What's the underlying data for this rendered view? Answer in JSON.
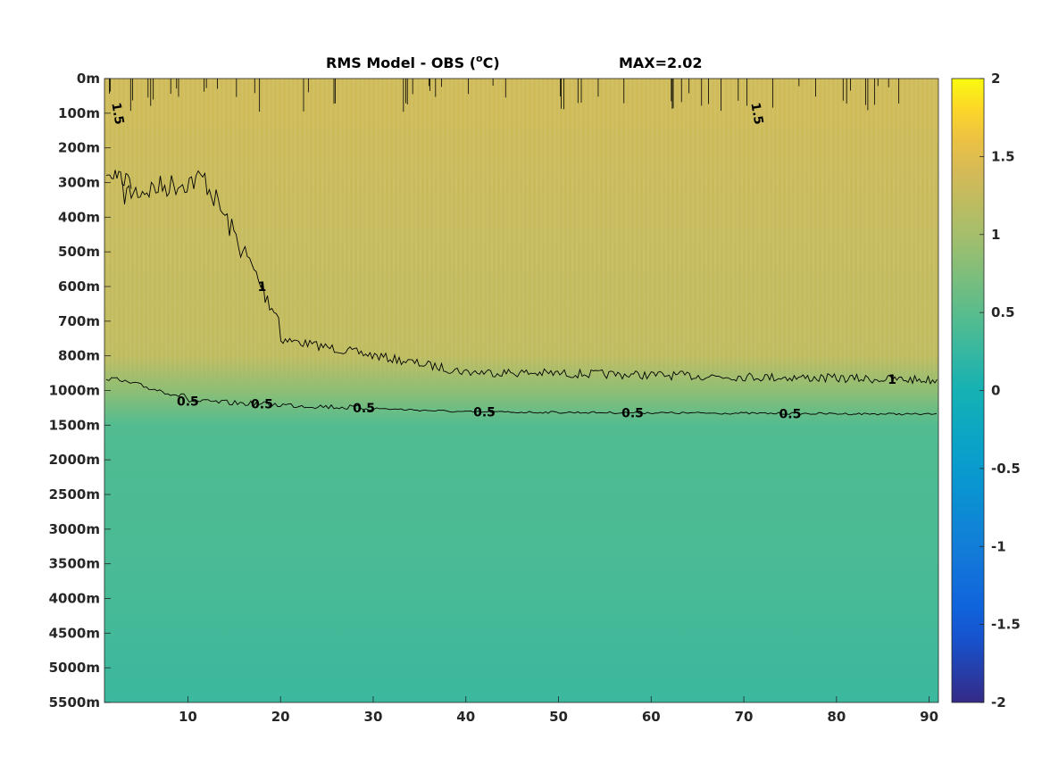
{
  "chart_data": {
    "type": "heatmap",
    "title": "RMS Model - OBS (°C)",
    "title_prefix": "RMS Model - OBS (",
    "title_sup": "o",
    "title_suffix": "C)",
    "max_label": "MAX=2.02",
    "xlim": [
      1,
      91
    ],
    "x_ticks": [
      10,
      20,
      30,
      40,
      50,
      60,
      70,
      80,
      90
    ],
    "y_tick_labels": [
      "0m",
      "100m",
      "200m",
      "300m",
      "400m",
      "500m",
      "600m",
      "700m",
      "800m",
      "1000m",
      "1500m",
      "2000m",
      "2500m",
      "3000m",
      "3500m",
      "4000m",
      "4500m",
      "5000m",
      "5500m"
    ],
    "colorbar": {
      "colormap": "parula",
      "clim": [
        -2,
        2
      ],
      "tick_values": [
        2,
        1.5,
        1,
        0.5,
        0,
        -0.5,
        -1,
        -1.5,
        -2
      ],
      "tick_labels": [
        "2",
        "1.5",
        "1",
        "0.5",
        "0",
        "-0.5",
        "-1",
        "-1.5",
        "-2"
      ]
    },
    "field_profile": {
      "depth_levels": [
        "0m",
        "100m",
        "200m",
        "300m",
        "400m",
        "500m",
        "600m",
        "700m",
        "800m",
        "1000m",
        "1500m",
        "2000m",
        "3000m",
        "4000m",
        "5000m",
        "5500m"
      ],
      "rms_values": [
        1.35,
        1.35,
        1.32,
        1.3,
        1.28,
        1.27,
        1.26,
        1.25,
        1.22,
        0.85,
        0.45,
        0.42,
        0.4,
        0.37,
        0.3,
        0.28
      ]
    },
    "contours": [
      {
        "level": "1",
        "label_positions_x": [
          18,
          86
        ]
      },
      {
        "level": "0.5",
        "label_positions_x": [
          10,
          18,
          29,
          42,
          58,
          75
        ]
      },
      {
        "level": "1.5",
        "label_positions_x": [
          2,
          71
        ]
      }
    ],
    "grid": false
  }
}
